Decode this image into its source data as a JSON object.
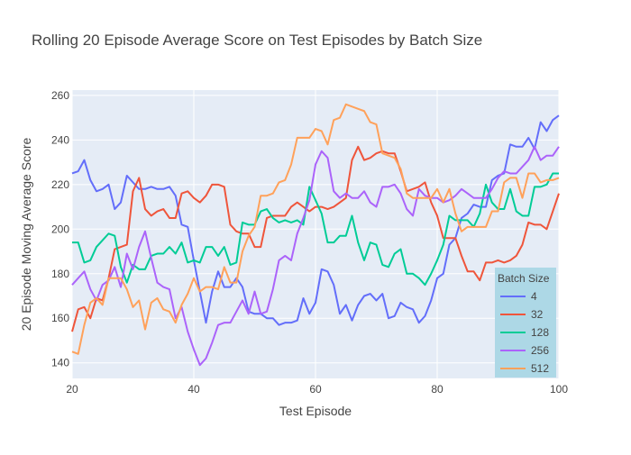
{
  "chart_data": {
    "type": "line",
    "title": "Rolling 20 Episode Average Score on Test Episodes by Batch Size",
    "x_label": "Test Episode",
    "y_label": "20 Episode Moving Average Score",
    "legend_title": "Batch Size",
    "legend_position": "bottom-right",
    "grid": true,
    "xlim": [
      20,
      100
    ],
    "xticks": [
      20,
      40,
      60,
      80,
      100
    ],
    "ylim": [
      133,
      262.4
    ],
    "yticks": [
      140,
      160,
      180,
      200,
      220,
      240,
      260
    ],
    "x": [
      20,
      21,
      22,
      23,
      24,
      25,
      26,
      27,
      28,
      29,
      30,
      31,
      32,
      33,
      34,
      35,
      36,
      37,
      38,
      39,
      40,
      41,
      42,
      43,
      44,
      45,
      46,
      47,
      48,
      49,
      50,
      51,
      52,
      53,
      54,
      55,
      56,
      57,
      58,
      59,
      60,
      61,
      62,
      63,
      64,
      65,
      66,
      67,
      68,
      69,
      70,
      71,
      72,
      73,
      74,
      75,
      76,
      77,
      78,
      79,
      80,
      81,
      82,
      83,
      84,
      85,
      86,
      87,
      88,
      89,
      90,
      91,
      92,
      93,
      94,
      95,
      96,
      97,
      98,
      99,
      100
    ],
    "series": [
      {
        "name": "4",
        "color": "#636efa",
        "values": [
          225,
          226,
          231,
          222,
          217,
          218,
          220,
          209,
          212,
          224,
          221,
          218,
          218,
          219,
          218,
          218,
          219,
          215,
          202,
          201,
          186,
          172,
          158,
          172,
          181,
          174,
          174,
          178,
          174,
          163,
          162,
          162,
          160,
          160,
          157,
          158,
          158,
          159,
          169,
          162,
          167,
          182,
          181,
          175,
          162,
          166,
          159,
          166,
          170,
          171,
          168,
          171,
          160,
          161,
          167,
          165,
          164,
          158,
          161,
          168,
          178,
          180,
          193,
          196,
          205,
          207,
          211,
          210,
          210,
          222,
          224,
          225,
          238,
          237,
          237,
          241,
          236,
          248,
          244,
          249,
          251
        ]
      },
      {
        "name": "32",
        "color": "#ef553b",
        "values": [
          154,
          164,
          165,
          160,
          169,
          168,
          178,
          191,
          192,
          193,
          217,
          223,
          209,
          206,
          208,
          209,
          205,
          205,
          216,
          217,
          214,
          212,
          215,
          220,
          220,
          219,
          202,
          199,
          198,
          198,
          192,
          192,
          205,
          206,
          206,
          206,
          210,
          212,
          210,
          208,
          210,
          210,
          209,
          210,
          212,
          214,
          231,
          237,
          231,
          232,
          234,
          235,
          234,
          234,
          226,
          217,
          218,
          219,
          221,
          212,
          206,
          196,
          196,
          196,
          188,
          181,
          181,
          177,
          185,
          185,
          186,
          185,
          186,
          188,
          193,
          203,
          202,
          202,
          200,
          208,
          216
        ]
      },
      {
        "name": "128",
        "color": "#00cc96",
        "values": [
          194,
          194,
          185,
          186,
          192,
          195,
          198,
          197,
          183,
          176,
          184,
          182,
          182,
          188,
          189,
          189,
          192,
          189,
          194,
          185,
          186,
          185,
          192,
          192,
          188,
          192,
          184,
          185,
          203,
          202,
          202,
          208,
          209,
          205,
          203,
          204,
          203,
          204,
          202,
          219,
          213,
          207,
          194,
          194,
          197,
          197,
          206,
          194,
          186,
          194,
          193,
          184,
          183,
          189,
          191,
          180,
          180,
          178,
          175,
          180,
          186,
          193,
          206,
          204,
          204,
          204,
          201,
          207,
          220,
          212,
          209,
          209,
          218,
          208,
          206,
          206,
          219,
          219,
          220,
          225,
          225
        ]
      },
      {
        "name": "256",
        "color": "#ab63fa",
        "values": [
          175,
          178,
          181,
          173,
          168,
          175,
          177,
          183,
          174,
          189,
          182,
          192,
          199,
          187,
          176,
          174,
          173,
          160,
          165,
          154,
          146,
          139,
          142,
          149,
          157,
          158,
          158,
          163,
          168,
          162,
          172,
          162,
          163,
          173,
          186,
          188,
          186,
          198,
          205,
          213,
          229,
          235,
          232,
          217,
          214,
          216,
          214,
          214,
          217,
          212,
          210,
          219,
          219,
          220,
          216,
          209,
          206,
          218,
          215,
          214,
          214,
          212,
          213,
          215,
          218,
          216,
          214,
          214,
          214,
          218,
          223,
          226,
          225,
          225,
          228,
          231,
          237,
          231,
          233,
          233,
          237
        ]
      },
      {
        "name": "512",
        "color": "#ffa15a",
        "values": [
          145,
          144,
          157,
          167,
          169,
          166,
          178,
          178,
          178,
          173,
          165,
          168,
          155,
          167,
          169,
          164,
          163,
          158,
          166,
          171,
          178,
          172,
          174,
          174,
          173,
          183,
          176,
          176,
          190,
          197,
          201,
          215,
          215,
          216,
          221,
          222,
          229,
          241,
          241,
          241,
          245,
          244,
          238,
          249,
          250,
          256,
          255,
          254,
          253,
          248,
          247,
          234,
          233,
          232,
          227,
          216,
          214,
          214,
          214,
          214,
          218,
          212,
          218,
          207,
          199,
          201,
          201,
          201,
          201,
          208,
          208,
          221,
          223,
          223,
          214,
          225,
          225,
          221,
          222,
          222,
          223
        ]
      }
    ]
  }
}
